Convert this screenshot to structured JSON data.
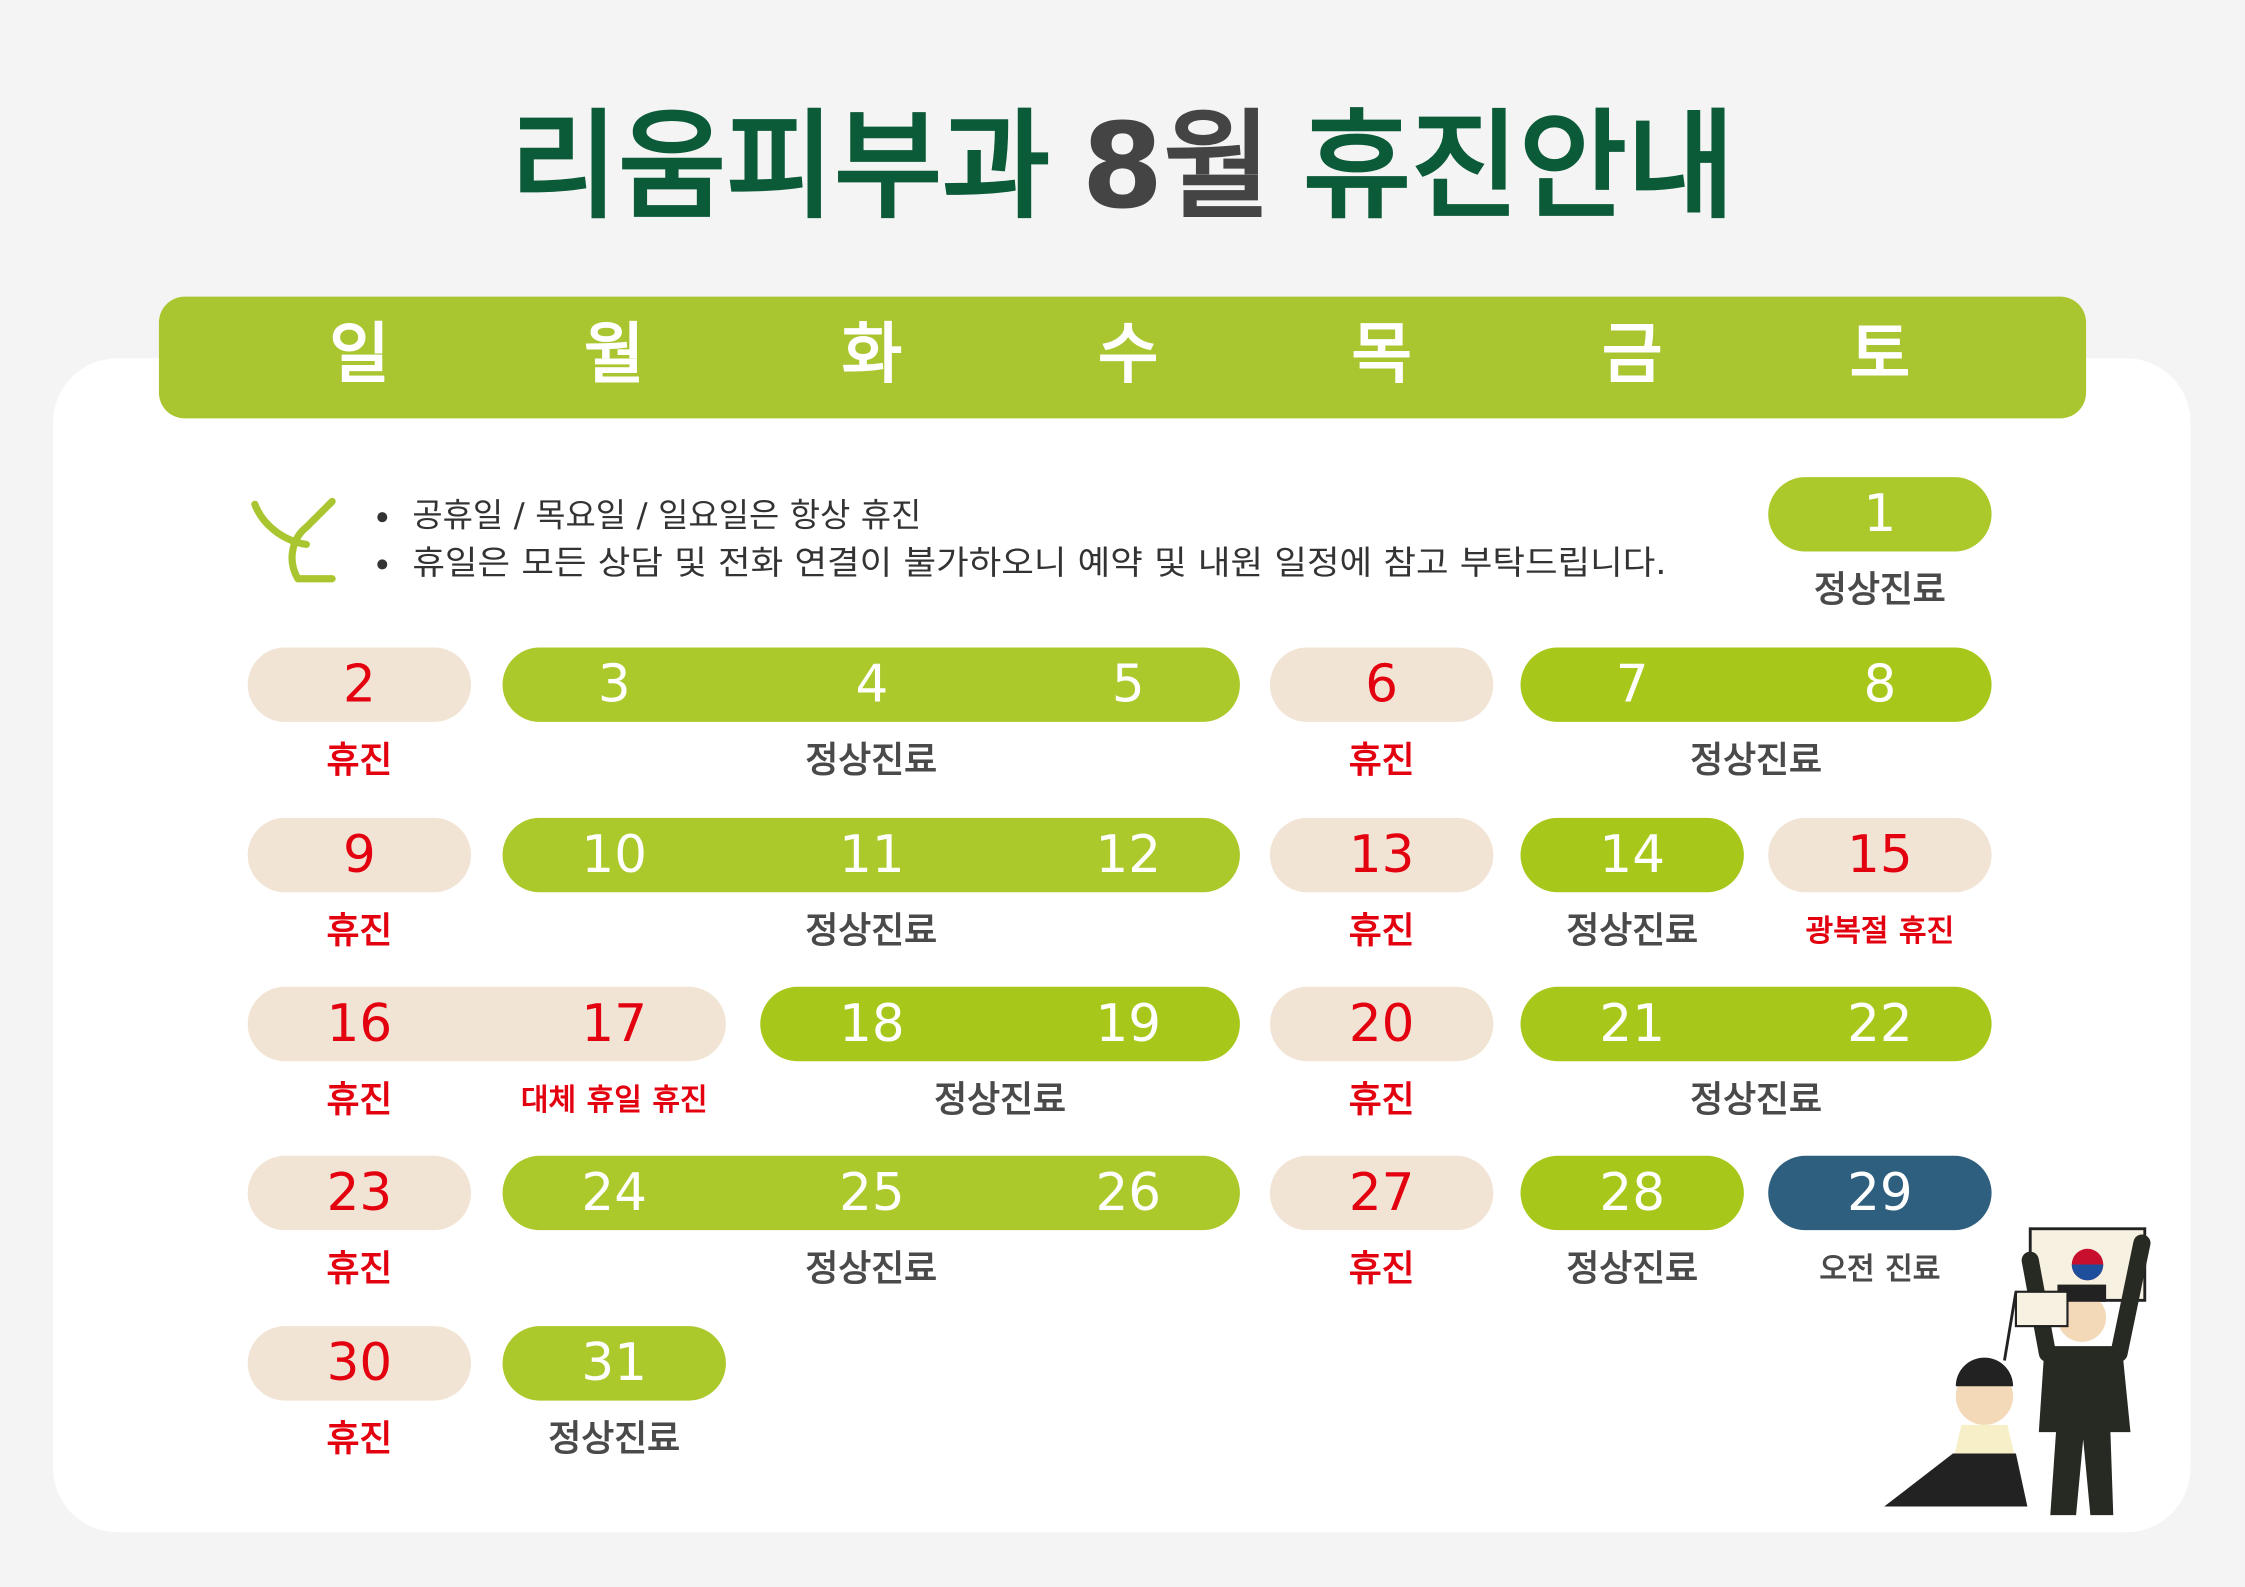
{
  "title": {
    "clinic": "리움피부과",
    "month": "8월",
    "notice": "휴진안내"
  },
  "weekdays": [
    "일",
    "월",
    "화",
    "수",
    "목",
    "금",
    "토"
  ],
  "notes": [
    "공휴일 / 목요일 / 일요일은 항상 휴진",
    "휴일은 모든 상담 및 전화 연결이 불가하오니 예약 및 내원 일정에 참고 부탁드립니다."
  ],
  "calendar": {
    "rows": [
      {
        "pills": [
          {
            "days": [
              1
            ],
            "color": "#abc92b",
            "text_color": "#ffffff",
            "labels": [
              {
                "text": "정상진료",
                "color": "#4a4a4a"
              }
            ]
          }
        ]
      },
      {
        "pills": [
          {
            "days": [
              2
            ],
            "color": "#f2e4d4",
            "text_color": "#e3000f",
            "labels": [
              {
                "text": "휴진",
                "color": "#e3000f"
              }
            ]
          },
          {
            "days": [
              3,
              4,
              5
            ],
            "color": "#abc92b",
            "text_color": "#ffffff",
            "labels": [
              {
                "text": "정상진료",
                "color": "#4a4a4a"
              }
            ]
          },
          {
            "days": [
              6
            ],
            "color": "#f2e4d4",
            "text_color": "#e3000f",
            "labels": [
              {
                "text": "휴진",
                "color": "#e3000f"
              }
            ]
          },
          {
            "days": [
              7,
              8
            ],
            "color": "#a7c81b",
            "text_color": "#ffffff",
            "labels": [
              {
                "text": "정상진료",
                "color": "#4a4a4a"
              }
            ]
          }
        ]
      },
      {
        "pills": [
          {
            "days": [
              9
            ],
            "color": "#f2e4d4",
            "text_color": "#e3000f",
            "labels": [
              {
                "text": "휴진",
                "color": "#e3000f"
              }
            ]
          },
          {
            "days": [
              10,
              11,
              12
            ],
            "color": "#abc92b",
            "text_color": "#ffffff",
            "labels": [
              {
                "text": "정상진료",
                "color": "#4a4a4a"
              }
            ]
          },
          {
            "days": [
              13
            ],
            "color": "#f2e4d4",
            "text_color": "#e3000f",
            "labels": [
              {
                "text": "휴진",
                "color": "#e3000f"
              }
            ]
          },
          {
            "days": [
              14
            ],
            "color": "#a7c81b",
            "text_color": "#ffffff",
            "labels": [
              {
                "text": "정상진료",
                "color": "#4a4a4a"
              }
            ]
          },
          {
            "days": [
              15
            ],
            "color": "#f2e4d4",
            "text_color": "#e3000f",
            "labels": [
              {
                "text": "광복절 휴진",
                "color": "#e3000f"
              }
            ]
          }
        ]
      },
      {
        "pills": [
          {
            "days": [
              16,
              17
            ],
            "color": "#f2e4d4",
            "text_color": "#e3000f",
            "labels": [
              {
                "text": "휴진",
                "color": "#e3000f"
              },
              {
                "text": "대체 휴일 휴진",
                "color": "#e3000f"
              }
            ]
          },
          {
            "days": [
              18,
              19
            ],
            "color": "#a7c81b",
            "text_color": "#ffffff",
            "labels": [
              {
                "text": "정상진료",
                "color": "#4a4a4a"
              }
            ]
          },
          {
            "days": [
              20
            ],
            "color": "#f2e4d4",
            "text_color": "#e3000f",
            "labels": [
              {
                "text": "휴진",
                "color": "#e3000f"
              }
            ]
          },
          {
            "days": [
              21,
              22
            ],
            "color": "#a7c81b",
            "text_color": "#ffffff",
            "labels": [
              {
                "text": "정상진료",
                "color": "#4a4a4a"
              }
            ]
          }
        ]
      },
      {
        "pills": [
          {
            "days": [
              23
            ],
            "color": "#f2e4d4",
            "text_color": "#e3000f",
            "labels": [
              {
                "text": "휴진",
                "color": "#e3000f"
              }
            ]
          },
          {
            "days": [
              24,
              25,
              26
            ],
            "color": "#abc92b",
            "text_color": "#ffffff",
            "labels": [
              {
                "text": "정상진료",
                "color": "#4a4a4a"
              }
            ]
          },
          {
            "days": [
              27
            ],
            "color": "#f2e4d4",
            "text_color": "#e3000f",
            "labels": [
              {
                "text": "휴진",
                "color": "#e3000f"
              }
            ]
          },
          {
            "days": [
              28
            ],
            "color": "#a7c81b",
            "text_color": "#ffffff",
            "labels": [
              {
                "text": "정상진료",
                "color": "#4a4a4a"
              }
            ]
          },
          {
            "days": [
              29
            ],
            "color": "#2f5f7f",
            "text_color": "#ffffff",
            "labels": [
              {
                "text": "오전 진료",
                "color": "#4a4a4a"
              }
            ]
          }
        ]
      },
      {
        "pills": [
          {
            "days": [
              30
            ],
            "color": "#f2e4d4",
            "text_color": "#e3000f",
            "labels": [
              {
                "text": "휴진",
                "color": "#e3000f"
              }
            ]
          },
          {
            "days": [
              31
            ],
            "color": "#abc92b",
            "text_color": "#ffffff",
            "labels": [
              {
                "text": "정상진료",
                "color": "#4a4a4a"
              }
            ]
          }
        ]
      }
    ]
  }
}
